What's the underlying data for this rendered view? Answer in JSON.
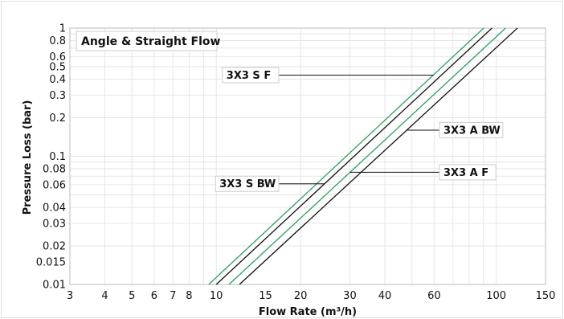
{
  "chart_data": {
    "type": "line",
    "title": "Angle & Straight Flow",
    "xlabel": "Flow Rate (m³/h)",
    "ylabel": "Pressure Loss (bar)",
    "xscale": "log",
    "yscale": "log",
    "xlim": [
      3,
      150
    ],
    "ylim": [
      0.01,
      1
    ],
    "grid": true,
    "xticks": [
      3,
      4,
      5,
      6,
      7,
      8,
      10,
      15,
      20,
      30,
      40,
      60,
      100,
      150
    ],
    "xtick_labels": [
      "3",
      "4",
      "5",
      "6",
      "7",
      "8",
      "10",
      "15",
      "20",
      "30",
      "40",
      "60",
      "100",
      "150"
    ],
    "yticks": [
      0.01,
      0.015,
      0.02,
      0.03,
      0.04,
      0.06,
      0.08,
      0.1,
      0.2,
      0.3,
      0.4,
      0.5,
      0.6,
      0.8,
      1
    ],
    "ytick_labels": [
      "0.01",
      "0.015",
      "0.02",
      "0.03",
      "0.04",
      "0.06",
      "0.08",
      "0.1",
      "0.2",
      "0.3",
      "0.4",
      "0.5",
      "0.6",
      "0.8",
      "1"
    ],
    "series": [
      {
        "name": "3X3 S F",
        "color": "#2ca05a",
        "x": [
          9.4,
          90.2
        ],
        "y": [
          0.01,
          1
        ]
      },
      {
        "name": "3X3 S BW",
        "color": "#111111",
        "x": [
          10.0,
          96.5
        ],
        "y": [
          0.01,
          1
        ]
      },
      {
        "name": "3X3 A F",
        "color": "#2ca05a",
        "x": [
          11.1,
          108.0
        ],
        "y": [
          0.01,
          1
        ]
      },
      {
        "name": "3X3 A BW",
        "color": "#111111",
        "x": [
          12.1,
          119.0
        ],
        "y": [
          0.01,
          1
        ]
      }
    ],
    "annotations": [
      {
        "text": "3X3 S F",
        "series": "3X3 S F",
        "at_y": 0.43,
        "side": "left"
      },
      {
        "text": "3X3 A BW",
        "series": "3X3 A BW",
        "at_y": 0.16,
        "side": "right"
      },
      {
        "text": "3X3 A F",
        "series": "3X3 A F",
        "at_y": 0.075,
        "side": "right"
      },
      {
        "text": "3X3 S BW",
        "series": "3X3 S BW",
        "at_y": 0.061,
        "side": "left"
      }
    ]
  }
}
